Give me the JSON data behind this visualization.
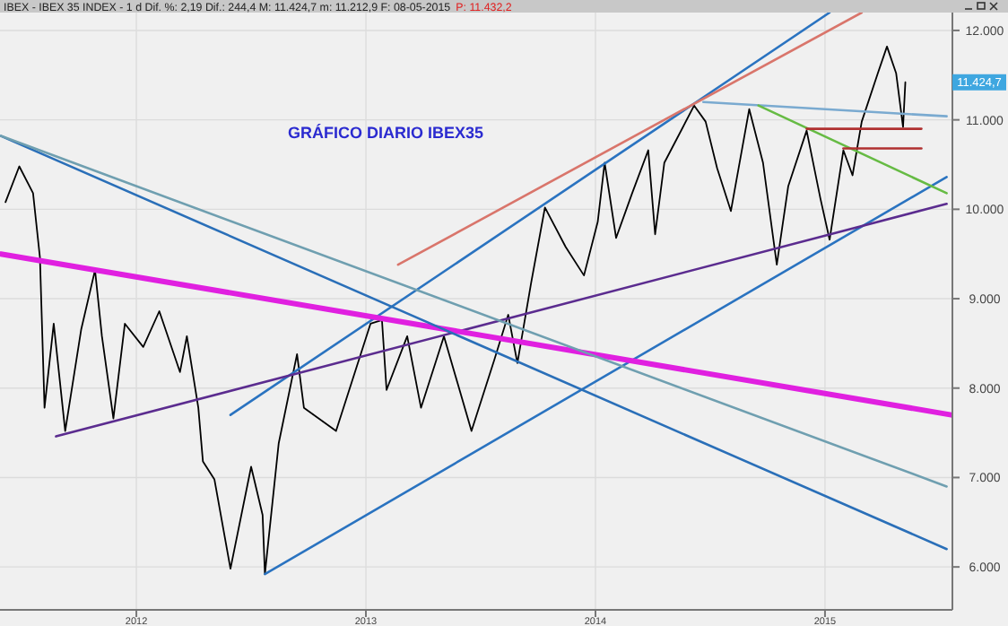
{
  "chart_data": {
    "type": "line",
    "title": "GRÁFICO DIARIO IBEX35",
    "subtitle": "IBEX - IBEX 35 INDEX - 1 d Dif. %: 2,19 Dif.: 244,4 M: 11.424,7 m: 11.212,9 F: 08-05-2015",
    "annotations": [
      "P: 11.432,2",
      "11.424,7"
    ],
    "xlim": [
      2011.406,
      2015.555
    ],
    "xticks": [
      2012,
      2013,
      2014,
      2015
    ],
    "ylim": [
      5520,
      12200
    ],
    "yticks": [
      {
        "value": 6000,
        "label": "6.000"
      },
      {
        "value": 7000,
        "label": "7.000"
      },
      {
        "value": 8000,
        "label": "8.000"
      },
      {
        "value": 9000,
        "label": "9.000"
      },
      {
        "value": 10000,
        "label": "10.000"
      },
      {
        "value": 11000,
        "label": "11.000"
      },
      {
        "value": 12000,
        "label": "12.000"
      }
    ],
    "grid": true,
    "series": [
      {
        "color": "#000000",
        "x": [
          2011.43,
          2011.49,
          2011.55,
          2011.58,
          2011.6,
          2011.64,
          2011.69,
          2011.76,
          2011.82,
          2011.85,
          2011.9,
          2011.95,
          2012.03,
          2012.1,
          2012.19,
          2012.22,
          2012.27,
          2012.29,
          2012.34,
          2012.41,
          2012.5,
          2012.55,
          2012.56,
          2012.62,
          2012.7,
          2012.73,
          2012.87,
          2013.02,
          2013.07,
          2013.09,
          2013.18,
          2013.24,
          2013.34,
          2013.46,
          2013.56,
          2013.62,
          2013.66,
          2013.72,
          2013.78,
          2013.87,
          2013.95,
          2014.01,
          2014.04,
          2014.09,
          2014.16,
          2014.23,
          2014.26,
          2014.3,
          2014.43,
          2014.48,
          2014.53,
          2014.59,
          2014.67,
          2014.73,
          2014.79,
          2014.84,
          2014.92,
          2014.98,
          2015.02,
          2015.08,
          2015.12,
          2015.16,
          2015.23,
          2015.27,
          2015.31,
          2015.34,
          2015.35
        ],
        "values": [
          10080,
          10480,
          10180,
          9460,
          7780,
          8720,
          7520,
          8660,
          9320,
          8580,
          7660,
          8720,
          8460,
          8860,
          8180,
          8580,
          7780,
          7180,
          6980,
          5980,
          7120,
          6580,
          5920,
          7380,
          8380,
          7780,
          7520,
          8720,
          8760,
          7980,
          8580,
          7780,
          8580,
          7520,
          8320,
          8820,
          8280,
          9180,
          10020,
          9580,
          9260,
          9860,
          10520,
          9680,
          10180,
          10660,
          9720,
          10520,
          11160,
          10980,
          10460,
          9980,
          11120,
          10520,
          9380,
          10260,
          10880,
          10120,
          9660,
          10660,
          10380,
          10980,
          11520,
          11820,
          11520,
          10920,
          11420
        ]
      },
      {
        "color": "#2a73c0",
        "x": [
          2012.41,
          2015.02
        ],
        "values": [
          7700,
          12200
        ]
      },
      {
        "color": "#d9756b",
        "x": [
          2013.14,
          2015.16
        ],
        "values": [
          9380,
          12200
        ]
      },
      {
        "color": "#2a73c0",
        "x": [
          2012.56,
          2015.53
        ],
        "values": [
          5920,
          10360
        ]
      },
      {
        "color": "#5b2c8f",
        "x": [
          2011.65,
          2015.53
        ],
        "values": [
          7460,
          10060
        ]
      },
      {
        "color": "#e020e0",
        "x": [
          2011.41,
          2015.55
        ],
        "values": [
          9500,
          7700
        ]
      },
      {
        "color": "#2a6fb8",
        "x": [
          2011.41,
          2015.53
        ],
        "values": [
          10820,
          6200
        ]
      },
      {
        "color": "#6f9fb0",
        "x": [
          2011.41,
          2015.53
        ],
        "values": [
          10820,
          6900
        ]
      },
      {
        "color": "#7aaad0",
        "x": [
          2014.47,
          2015.53
        ],
        "values": [
          11200,
          11040
        ]
      },
      {
        "color": "#66bb44",
        "x": [
          2014.71,
          2015.53
        ],
        "values": [
          11160,
          10180
        ]
      },
      {
        "color": "#b03030",
        "x": [
          2014.92,
          2015.42
        ],
        "values": [
          10900,
          10900
        ]
      },
      {
        "color": "#b03030",
        "x": [
          2015.08,
          2015.42
        ],
        "values": [
          10680,
          10680
        ]
      }
    ]
  }
}
